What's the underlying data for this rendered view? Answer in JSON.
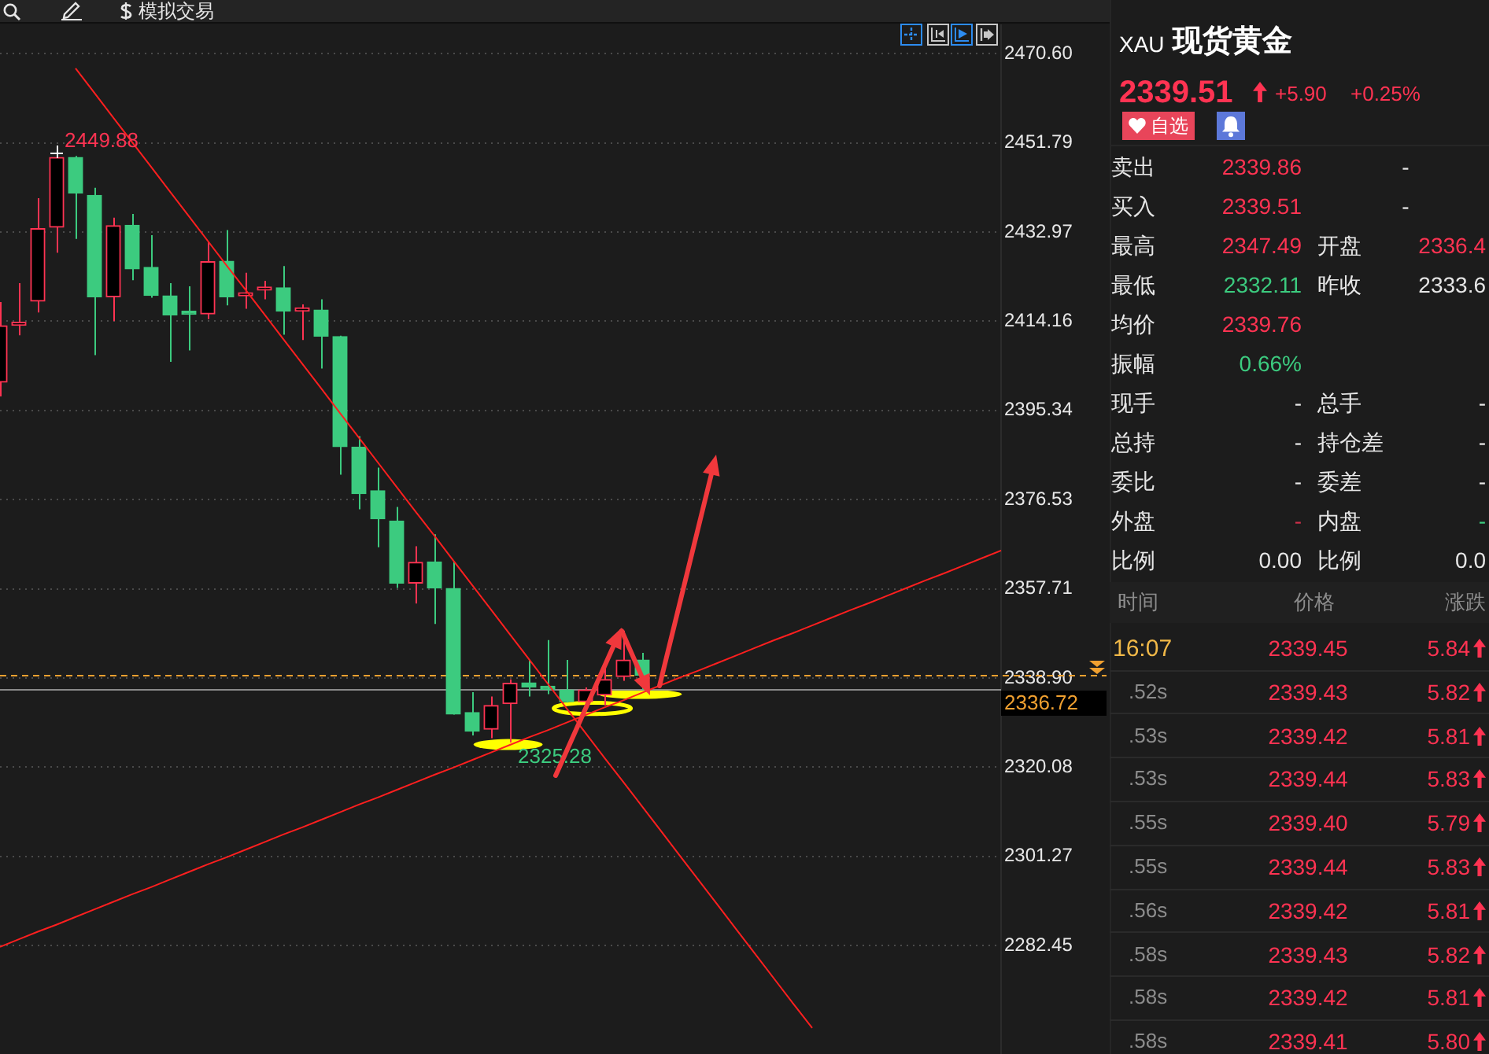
{
  "chart_data": [
    {
      "type": "other",
      "annotations": [
        "模拟交易"
      ]
    },
    {
      "type": "candlestick",
      "categories": [
        null,
        null,
        null,
        null,
        null,
        null,
        null,
        null,
        null,
        null,
        null,
        null,
        null,
        null,
        null,
        null,
        null,
        null,
        null,
        null,
        null,
        null,
        null,
        null,
        null,
        null,
        null,
        null,
        null,
        null,
        null,
        null,
        null,
        null,
        null,
        null,
        null,
        null,
        null,
        null,
        null,
        null,
        null,
        null,
        null,
        null,
        null,
        null,
        null,
        null,
        null,
        null,
        null,
        null
      ],
      "ohlc": [
        [
          2401.3,
          2418.2,
          2398.3,
          2413.2
        ],
        [
          2413.3,
          2422.2,
          2411.2,
          2413.6
        ],
        [
          2418.4,
          2440.1,
          2416.0,
          2433.7
        ],
        [
          2434.0,
          2449.88,
          2428.6,
          2448.7
        ],
        [
          2448.7,
          2449.0,
          2431.5,
          2441.2
        ],
        [
          2440.7,
          2442.3,
          2407.0,
          2419.3
        ],
        [
          2419.3,
          2436.0,
          2414.2,
          2434.3
        ],
        [
          2434.4,
          2436.8,
          2422.8,
          2425.2
        ],
        [
          2425.5,
          2432.3,
          2419.1,
          2419.6
        ],
        [
          2419.5,
          2422.2,
          2405.6,
          2415.5
        ],
        [
          2415.8,
          2421.5,
          2408.0,
          2415.6
        ],
        [
          2415.7,
          2430.8,
          2414.6,
          2426.7
        ],
        [
          2426.8,
          2433.4,
          2417.5,
          2419.3
        ],
        [
          2419.5,
          2424.4,
          2416.8,
          2419.7
        ],
        [
          2420.7,
          2422.7,
          2418.8,
          2420.9
        ],
        [
          2421.2,
          2425.8,
          2411.3,
          2416.3
        ],
        [
          2416.3,
          2417.7,
          2410.2,
          2416.5
        ],
        [
          2416.5,
          2418.8,
          2404.2,
          2411.0
        ],
        [
          2410.9,
          2411.1,
          2381.8,
          2387.7
        ],
        [
          2387.6,
          2389.9,
          2374.5,
          2377.8
        ],
        [
          2378.4,
          2383.3,
          2366.5,
          2372.5
        ],
        [
          2372.0,
          2375.0,
          2357.9,
          2358.9
        ],
        [
          2358.9,
          2366.7,
          2354.6,
          2363.3
        ],
        [
          2363.4,
          2369.2,
          2350.3,
          2357.9
        ],
        [
          2357.8,
          2363.4,
          2331.2,
          2331.3
        ],
        [
          2331.6,
          2335.9,
          2326.8,
          2327.7
        ],
        [
          2328.1,
          2335.0,
          2326.2,
          2333.1
        ],
        [
          2333.5,
          2338.6,
          2325.28,
          2337.8
        ],
        [
          2337.9,
          2342.7,
          2335.0,
          2337.0
        ],
        [
          2337.0,
          2346.9,
          2335.5,
          2336.5
        ],
        [
          2336.4,
          2342.7,
          2333.7,
          2333.9
        ],
        [
          2333.9,
          2336.9,
          2332.5,
          2336.4
        ],
        [
          2335.3,
          2340.9,
          2333.1,
          2338.6
        ],
        [
          2339.2,
          2348.9,
          2338.3,
          2342.7
        ],
        [
          2342.7,
          2344.2,
          2336.4,
          2339.5
        ],
        null,
        null,
        null,
        null,
        null,
        null,
        null,
        null,
        null,
        null,
        null,
        null,
        null,
        null,
        null,
        null,
        null,
        null,
        null
      ],
      "colors": [
        "#ff3352",
        "#ff3352",
        "#ff3352",
        "#ff3352",
        "#3ccb7f",
        "#3ccb7f",
        "#ff3352",
        "#3ccb7f",
        "#3ccb7f",
        "#3ccb7f",
        "#3ccb7f",
        "#ff3352",
        "#3ccb7f",
        "#ff3352",
        "#ff3352",
        "#3ccb7f",
        "#ff3352",
        "#3ccb7f",
        "#3ccb7f",
        "#3ccb7f",
        "#3ccb7f",
        "#3ccb7f",
        "#ff3352",
        "#3ccb7f",
        "#3ccb7f",
        "#3ccb7f",
        "#ff3352",
        "#ff3352",
        "#3ccb7f",
        "#3ccb7f",
        "#3ccb7f",
        "#ff3352",
        "#ff3352",
        "#ff3352",
        "#3ccb7f",
        null,
        null,
        null,
        null,
        null,
        null,
        null,
        null,
        null,
        null,
        null,
        null,
        null,
        null,
        null,
        null,
        null,
        null,
        null
      ],
      "series": [
        {
          "type": "line",
          "color": "#ff1f1f",
          "values": [
            null,
            null,
            null,
            null,
            2467.5,
            2462.3,
            2457.1,
            2451.9,
            2446.7,
            2441.5,
            2436.3,
            2431.1,
            2425.9,
            2420.8,
            2415.6,
            2410.4,
            2405.2,
            2400.0,
            2394.8,
            2389.6,
            2384.4,
            2379.2,
            2374.0,
            2368.9,
            2363.7,
            2358.5,
            2353.3,
            2348.1,
            2342.9,
            2337.7,
            2332.5,
            2327.3,
            2322.1,
            2317.0,
            2311.8,
            2306.6,
            2301.4,
            2296.2,
            2291.0,
            2285.8,
            2280.6,
            2275.4,
            2270.2,
            2265.1,
            null,
            null,
            null,
            null,
            null,
            null,
            null,
            null,
            null,
            null
          ]
        },
        {
          "type": "line",
          "color": "#ff1f1f",
          "values": [
            2282.2,
            2283.8,
            2285.4,
            2286.9,
            2288.5,
            2290.1,
            2291.7,
            2293.3,
            2294.8,
            2296.4,
            2298.0,
            2299.6,
            2301.1,
            2302.7,
            2304.3,
            2305.9,
            2307.4,
            2309.0,
            2310.6,
            2312.2,
            2313.7,
            2315.3,
            2316.9,
            2318.5,
            2320.0,
            2321.6,
            2323.2,
            2324.8,
            2326.4,
            2327.9,
            2329.5,
            2331.1,
            2332.7,
            2334.2,
            2335.8,
            2337.4,
            2339.0,
            2340.5,
            2342.1,
            2343.7,
            2345.3,
            2346.9,
            2348.4,
            2350.0,
            2351.6,
            2353.2,
            2354.7,
            2356.3,
            2357.9,
            2359.5,
            2361.0,
            2362.6,
            2364.2,
            2365.8
          ]
        }
      ],
      "ylim": [
        2259.6,
        2476.6
      ],
      "yticks": [
        2282.45,
        2301.27,
        2320.08,
        {
          "value": 2338.9,
          "label": "2338.90"
        },
        2357.71,
        2376.53,
        2395.34,
        2414.16,
        2432.97,
        2451.79,
        {
          "value": 2470.6,
          "label": "2470.60"
        }
      ],
      "grid": "y",
      "tick_labels": "y",
      "marker": "none",
      "ref_lines": [
        {
          "axis": "y",
          "value": 2339.51,
          "color": "#f0a030",
          "line_style": "dashed"
        },
        {
          "axis": "y",
          "value": 2336.72,
          "label": "2336.72",
          "color": "#8a8a8a"
        }
      ],
      "annotations": [
        "2449.88",
        "2325.28"
      ]
    },
    {
      "type": "other",
      "subtitle": "XAU",
      "title": "现货黄金",
      "annotations": [
        "2339.51",
        "+5.90",
        "+0.25%",
        "自选"
      ]
    },
    {
      "type": "other",
      "annotations": [
        "卖出",
        "2339.86",
        "-",
        "买入",
        "2339.51",
        "-",
        "最高",
        "2347.49",
        "开盘",
        "2336.4",
        "最低",
        "2332.11",
        "昨收",
        "2333.6",
        "均价",
        "2339.76",
        "振幅",
        "0.66%",
        "现手",
        "-",
        "总手",
        "-",
        "总持",
        "-",
        "持仓差",
        "-",
        "委比",
        "-",
        "委差",
        "-",
        "外盘",
        "-",
        "内盘",
        "-",
        "比例",
        "0.00",
        "比例",
        "0.0"
      ]
    },
    {
      "type": "other",
      "annotations": [
        "时间",
        "价格",
        "涨跌",
        "16:07",
        "2339.45",
        "5.84",
        ".52s",
        "2339.43",
        "5.82",
        ".53s",
        "2339.42",
        "5.81",
        ".53s",
        "2339.44",
        "5.83",
        ".55s",
        "2339.40",
        "5.79",
        ".55s",
        "2339.44",
        "5.83",
        ".56s",
        "2339.42",
        "5.81",
        ".58s",
        "2339.43",
        "5.82",
        ".58s",
        "2339.42",
        "5.81",
        ".58s",
        "2339.41",
        "5.80"
      ]
    }
  ]
}
